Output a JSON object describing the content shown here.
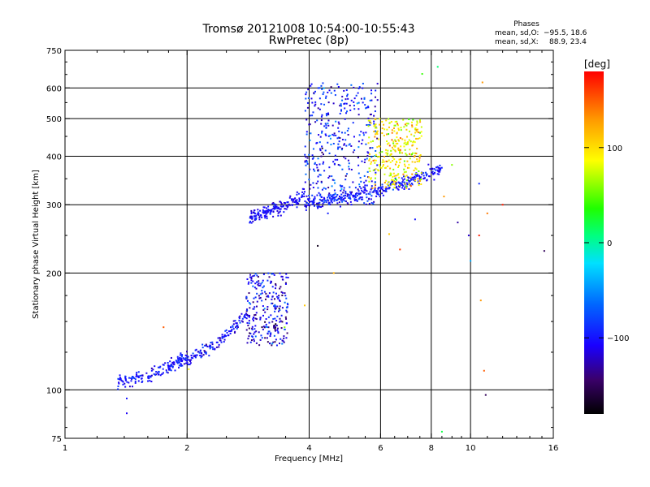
{
  "chart_data": {
    "type": "scatter",
    "title": "Tromsø 20121008 10:54:00-10:55:43",
    "subtitle": "RwPretec (8p)",
    "xlabel": "Frequency [MHz]",
    "ylabel": "Stationary phase Virtual Height [km]",
    "x_scale": "log",
    "y_scale": "log",
    "xlim": [
      1,
      16
    ],
    "ylim": [
      75,
      750
    ],
    "x_ticks": [
      1,
      2,
      4,
      6,
      8,
      10,
      16
    ],
    "x_tick_labels": [
      "1",
      "2",
      "4",
      "6",
      "8",
      "10",
      "16"
    ],
    "y_ticks": [
      75,
      100,
      200,
      300,
      400,
      500,
      600,
      750
    ],
    "y_tick_labels": [
      "75",
      "100",
      "200",
      "300",
      "400",
      "500",
      "600",
      "750"
    ],
    "x_grid": [
      2,
      4,
      6,
      8,
      10
    ],
    "y_grid": [
      100,
      200,
      300,
      400,
      500,
      600
    ],
    "grid": true,
    "stats": {
      "heading": "Phases",
      "line1_label": "mean, sd,O:",
      "line1_values": "−95.5, 18.6",
      "line2_label": "mean, sd,X:",
      "line2_values": "88.9, 23.4"
    },
    "colorbar": {
      "label": "[deg]",
      "range": [
        -180,
        180
      ],
      "ticks": [
        100,
        0,
        -100
      ],
      "tick_labels": [
        "100",
        "0",
        "−100"
      ],
      "colormap": "rainbow"
    },
    "clusters": [
      {
        "name": "E-region low trace",
        "f_range": [
          1.35,
          1.95
        ],
        "h_range": [
          105,
          120
        ],
        "n": 140,
        "trend": "rising",
        "phase_mean": -100,
        "phase_sd": 12
      },
      {
        "name": "E-region rising trace",
        "f_range": [
          1.9,
          2.85
        ],
        "h_range": [
          118,
          160
        ],
        "n": 160,
        "trend": "rising",
        "phase_mean": -105,
        "phase_sd": 15
      },
      {
        "name": "Es blob",
        "f_range": [
          2.8,
          3.55
        ],
        "h_range": [
          130,
          200
        ],
        "n": 260,
        "trend": "cloud",
        "phase_mean": -110,
        "phase_sd": 25
      },
      {
        "name": "F trace bottom",
        "f_range": [
          2.85,
          3.9
        ],
        "h_range": [
          280,
          320
        ],
        "n": 170,
        "trend": "rising",
        "phase_mean": -105,
        "phase_sd": 10
      },
      {
        "name": "F O-mode trace",
        "f_range": [
          3.9,
          8.5
        ],
        "h_range": [
          305,
          370
        ],
        "n": 330,
        "trend": "rising",
        "phase_mean": -100,
        "phase_sd": 12
      },
      {
        "name": "F vertical spread",
        "f_range": [
          3.9,
          5.9
        ],
        "h_range": [
          300,
          620
        ],
        "n": 380,
        "trend": "cloud",
        "phase_mean": -95,
        "phase_sd": 25
      },
      {
        "name": "F X-mode cloud",
        "f_range": [
          5.6,
          7.6
        ],
        "h_range": [
          330,
          500
        ],
        "n": 300,
        "trend": "cloud",
        "phase_mean": 95,
        "phase_sd": 25
      }
    ],
    "sparse_points": [
      {
        "x": 1.42,
        "y": 95,
        "phase": -100
      },
      {
        "x": 1.42,
        "y": 87,
        "phase": -110
      },
      {
        "x": 1.75,
        "y": 145,
        "phase": 150
      },
      {
        "x": 2.02,
        "y": 113,
        "phase": 90
      },
      {
        "x": 3.48,
        "y": 145,
        "phase": 60
      },
      {
        "x": 3.9,
        "y": 165,
        "phase": 110
      },
      {
        "x": 4.2,
        "y": 235,
        "phase": -170
      },
      {
        "x": 4.6,
        "y": 200,
        "phase": 120
      },
      {
        "x": 6.7,
        "y": 230,
        "phase": 160
      },
      {
        "x": 7.3,
        "y": 275,
        "phase": -100
      },
      {
        "x": 8.3,
        "y": 680,
        "phase": 10
      },
      {
        "x": 8.5,
        "y": 78,
        "phase": 20
      },
      {
        "x": 8.6,
        "y": 315,
        "phase": 130
      },
      {
        "x": 9.0,
        "y": 380,
        "phase": 60
      },
      {
        "x": 9.3,
        "y": 270,
        "phase": -130
      },
      {
        "x": 9.9,
        "y": 250,
        "phase": -120
      },
      {
        "x": 10.0,
        "y": 215,
        "phase": -40
      },
      {
        "x": 10.5,
        "y": 250,
        "phase": 170
      },
      {
        "x": 10.5,
        "y": 340,
        "phase": -90
      },
      {
        "x": 10.7,
        "y": 620,
        "phase": 130
      },
      {
        "x": 10.8,
        "y": 112,
        "phase": 150
      },
      {
        "x": 10.9,
        "y": 97,
        "phase": -150
      },
      {
        "x": 11.0,
        "y": 285,
        "phase": 140
      },
      {
        "x": 10.6,
        "y": 170,
        "phase": 130
      },
      {
        "x": 12.0,
        "y": 300,
        "phase": 170
      },
      {
        "x": 15.2,
        "y": 228,
        "phase": -150
      },
      {
        "x": 7.6,
        "y": 652,
        "phase": 40
      },
      {
        "x": 6.6,
        "y": 485,
        "phase": 150
      },
      {
        "x": 4.45,
        "y": 285,
        "phase": -95
      },
      {
        "x": 6.3,
        "y": 252,
        "phase": 110
      }
    ]
  }
}
